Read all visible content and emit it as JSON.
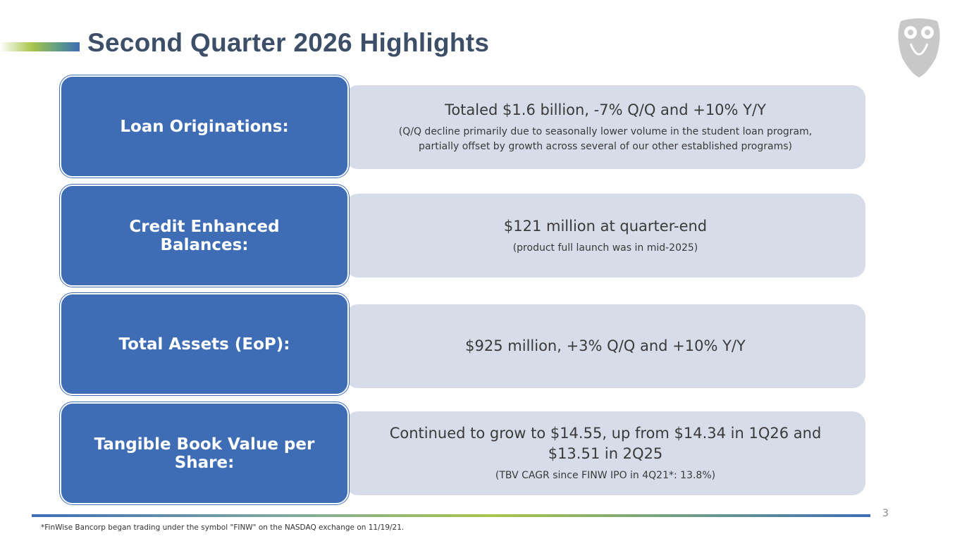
{
  "header": {
    "title": "Second Quarter 2026 Highlights"
  },
  "rows": [
    {
      "label": "Loan Originations:",
      "text": "Totaled $1.6 billion, -7% Q/Q and +10% Y/Y",
      "note": "(Q/Q decline primarily due to seasonally lower volume in the student loan program, partially offset by growth across several of our other established programs)"
    },
    {
      "label": "Credit Enhanced Balances:",
      "text": "$121 million at quarter-end",
      "note": "(product full launch was in mid-2025)"
    },
    {
      "label": "Total Assets (EoP):",
      "text": "$925 million, +3% Q/Q and +10% Y/Y"
    },
    {
      "label": "Tangible Book Value per Share:",
      "text": "Continued to grow to $14.55, up from $14.34 in 1Q26 and $13.51 in 2Q25",
      "note": "(TBV CAGR since FINW IPO in 4Q21*: 13.8%)"
    }
  ],
  "footer": {
    "footnote": "*FinWise Bancorp began trading under the symbol \"FINW\" on the NASDAQ exchange on 11/19/21.",
    "page": "3"
  }
}
